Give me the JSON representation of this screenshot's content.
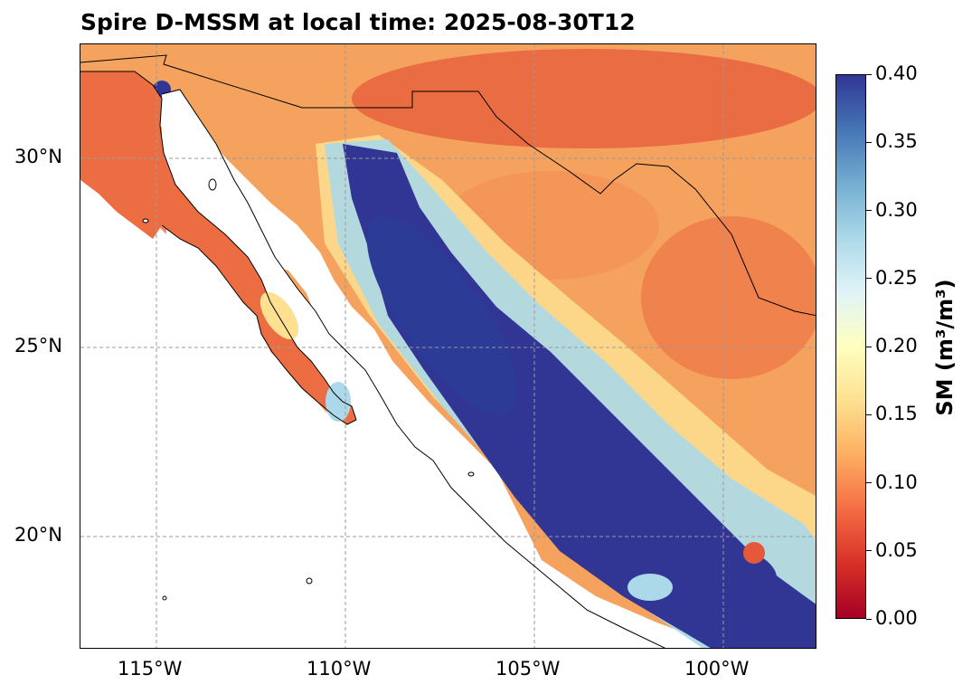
{
  "title": "Spire D-MSSM at local time: 2025-08-30T12",
  "map": {
    "region": "Northwestern Mexico / Baja California",
    "lon_range": [
      -117.0,
      -97.5
    ],
    "lat_range": [
      17.0,
      33.0
    ],
    "gridlines": true,
    "x_ticks": [
      {
        "value": -115,
        "label": "115°W"
      },
      {
        "value": -110,
        "label": "110°W"
      },
      {
        "value": -105,
        "label": "105°W"
      },
      {
        "value": -100,
        "label": "100°W"
      }
    ],
    "y_ticks": [
      {
        "value": 30,
        "label": "30°N"
      },
      {
        "value": 25,
        "label": "25°N"
      },
      {
        "value": 20,
        "label": "20°N"
      }
    ],
    "colormap": "RdYlBu",
    "colormap_colors": [
      "#a50026",
      "#d73027",
      "#f46d43",
      "#fdae61",
      "#fee090",
      "#ffffbf",
      "#e0f3f8",
      "#abd9e9",
      "#74add1",
      "#4575b4",
      "#313695"
    ]
  },
  "colorbar": {
    "label": "SM (m³/m³)",
    "range": [
      0.0,
      0.4
    ],
    "ticks": [
      "0.40",
      "0.35",
      "0.30",
      "0.25",
      "0.20",
      "0.15",
      "0.10",
      "0.05",
      "0.00"
    ]
  }
}
